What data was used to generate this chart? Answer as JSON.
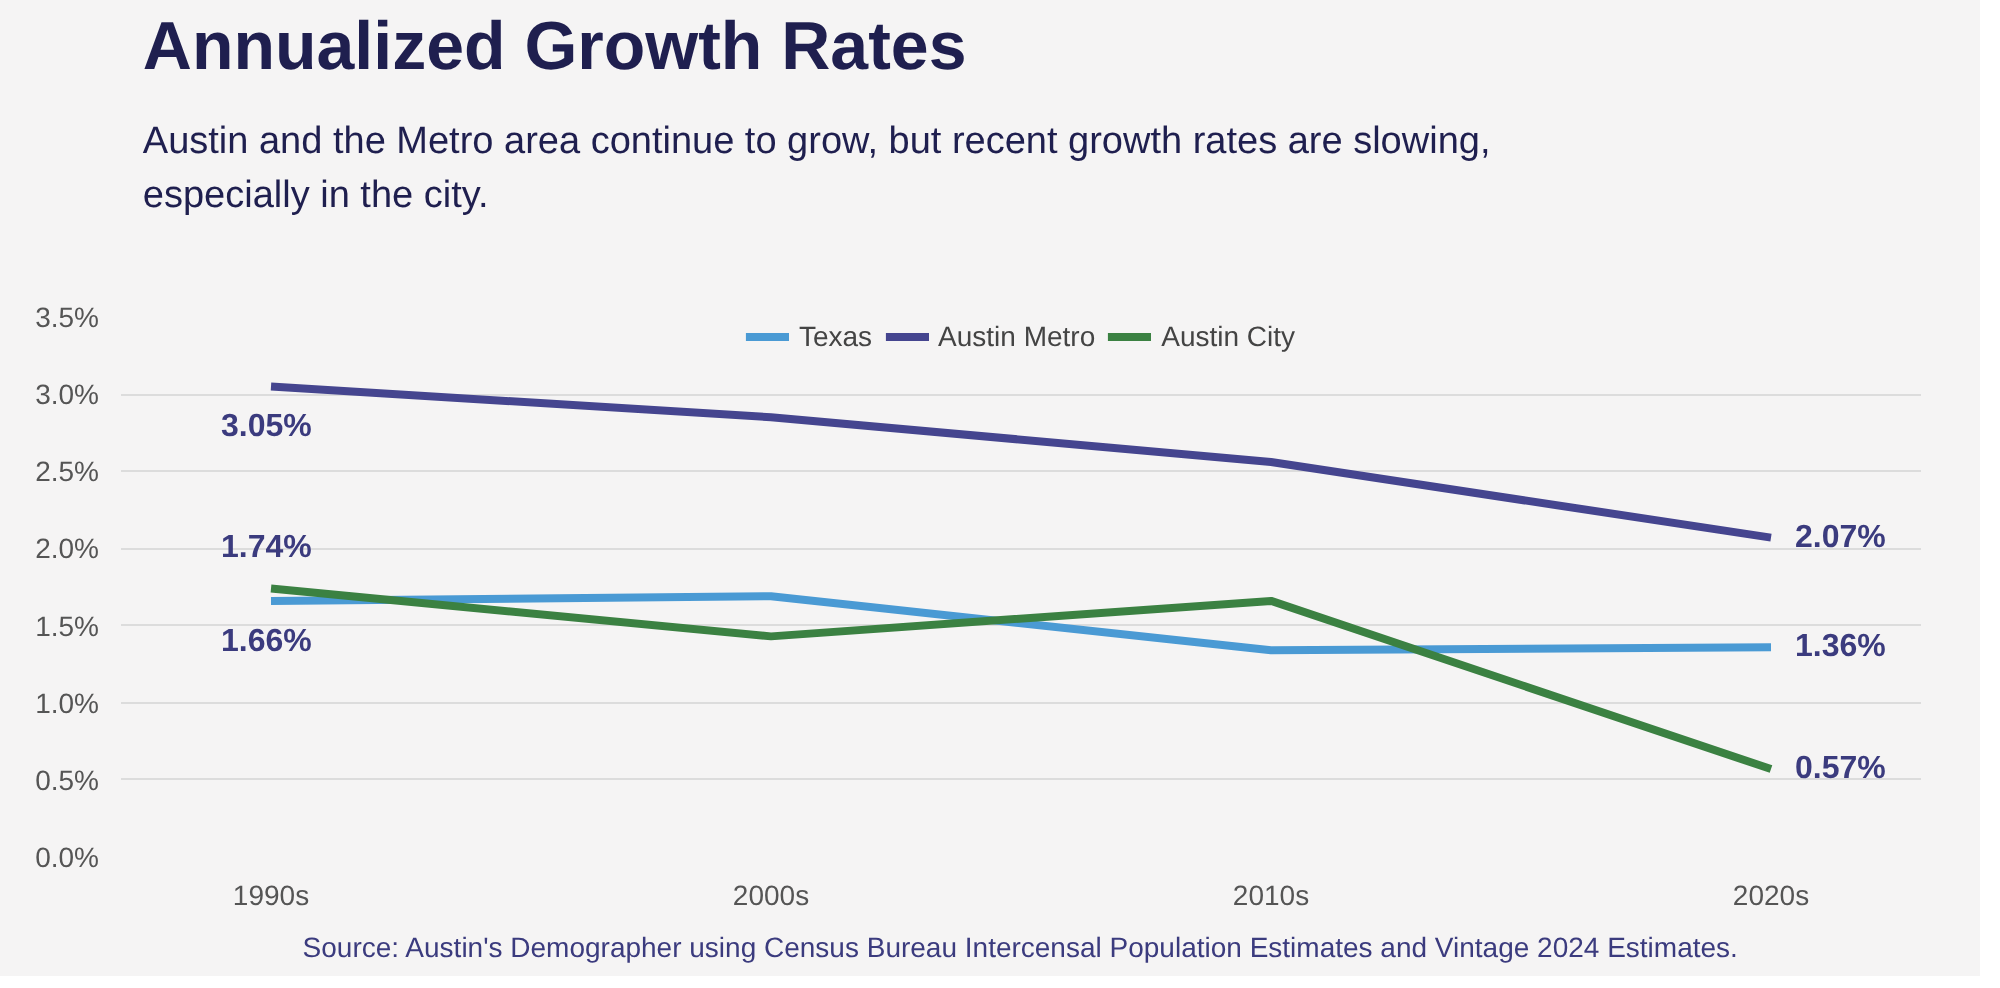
{
  "chart_data": {
    "type": "line",
    "title": "Annualized Growth Rates",
    "subtitle": "Austin and the Metro area continue to grow, but recent growth rates are slowing, especially in the city.",
    "categories": [
      "1990s",
      "2000s",
      "2010s",
      "2020s"
    ],
    "series": [
      {
        "name": "Texas",
        "color": "#4a9ad4",
        "values": [
          1.66,
          1.69,
          1.34,
          1.36
        ],
        "value_labels": [
          "1.66%",
          null,
          null,
          "1.36%"
        ]
      },
      {
        "name": "Austin Metro",
        "color": "#45458f",
        "values": [
          3.05,
          2.85,
          2.56,
          2.07
        ],
        "value_labels": [
          "3.05%",
          null,
          null,
          "2.07%"
        ]
      },
      {
        "name": "Austin City",
        "color": "#3b8142",
        "values": [
          1.74,
          1.43,
          1.66,
          0.57
        ],
        "value_labels": [
          "1.74%",
          null,
          null,
          "0.57%"
        ]
      }
    ],
    "ylim": [
      0,
      3.5
    ],
    "yticks": [
      {
        "value": 0,
        "label": "0.0%"
      },
      {
        "value": 0.5,
        "label": "0.5%"
      },
      {
        "value": 1,
        "label": "1.0%"
      },
      {
        "value": 1.5,
        "label": "1.5%"
      },
      {
        "value": 2,
        "label": "2.0%"
      },
      {
        "value": 2.5,
        "label": "2.5%"
      },
      {
        "value": 3,
        "label": "3.0%"
      },
      {
        "value": 3.5,
        "label": "3.5%"
      }
    ],
    "grid": "y",
    "legend": "top",
    "marker": "none",
    "line_style": "solid",
    "annotations": [
      "Source: Austin's Demographer using Census Bureau Intercensal Population Estimates and Vintage 2024 Estimates."
    ]
  }
}
